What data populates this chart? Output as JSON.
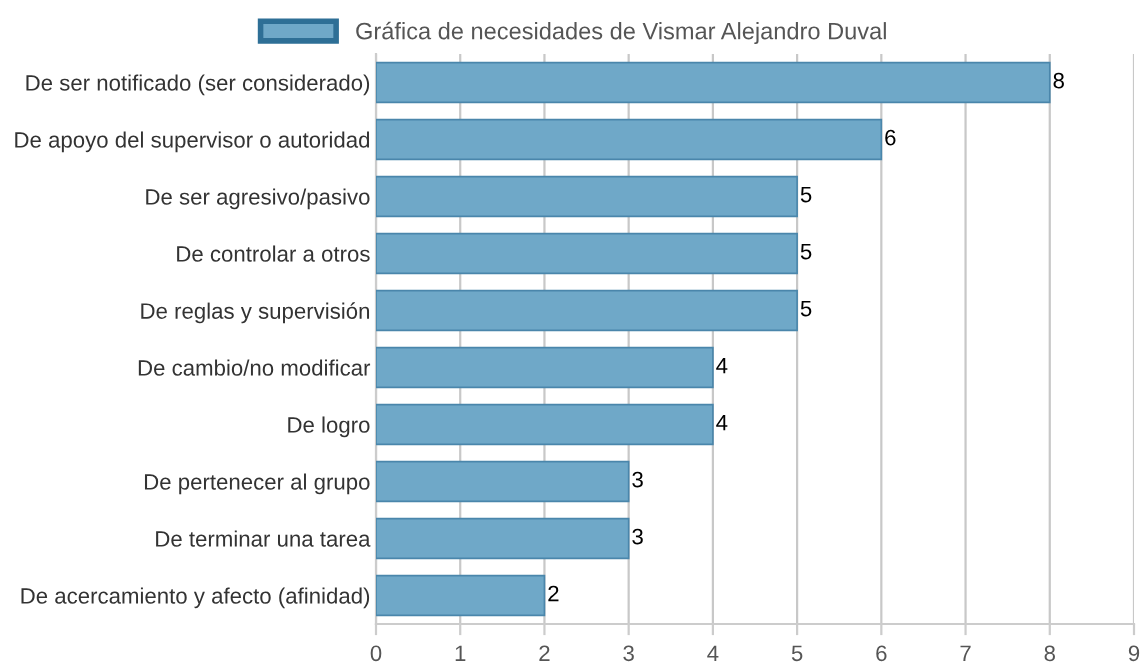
{
  "chart_data": {
    "type": "bar",
    "orientation": "horizontal",
    "categories": [
      "De ser notificado (ser considerado)",
      "De apoyo del supervisor o autoridad",
      "De ser agresivo/pasivo",
      "De controlar a otros",
      "De reglas y supervisión",
      "De cambio/no modificar",
      "De logro",
      "De pertenecer al grupo",
      "De terminar una tarea",
      "De acercamiento y afecto (afinidad)"
    ],
    "series": [
      {
        "name": "Gráfica de necesidades de Vismar Alejandro Duval",
        "color": "#6fa8c8",
        "values": [
          8,
          6,
          5,
          5,
          5,
          4,
          4,
          3,
          3,
          2
        ]
      }
    ],
    "xlim": [
      0,
      9
    ],
    "xticks": [
      0,
      1,
      2,
      3,
      4,
      5,
      6,
      7,
      8,
      9
    ],
    "grid": "x",
    "legend": "top",
    "data_labels": true
  }
}
